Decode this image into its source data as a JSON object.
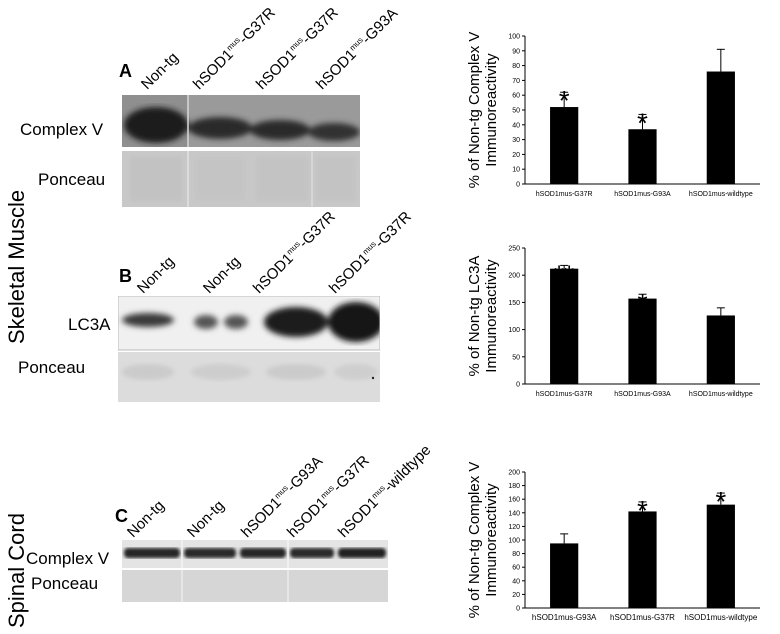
{
  "side_labels": {
    "skeletal_muscle": "Skeletal Muscle",
    "spinal_cord": "Spinal Cord"
  },
  "panel_a": {
    "letter": "A",
    "lanes": [
      {
        "base": "Non-tg",
        "sup": "",
        "suffix": ""
      },
      {
        "base": "hSOD1",
        "sup": "mus",
        "suffix": "-G37R"
      },
      {
        "base": "hSOD1",
        "sup": "mus",
        "suffix": "-G37R"
      },
      {
        "base": "hSOD1",
        "sup": "mus",
        "suffix": "-G93A"
      }
    ],
    "rows": [
      "Complex V",
      "Ponceau"
    ]
  },
  "panel_b": {
    "letter": "B",
    "lanes": [
      {
        "base": "Non-tg",
        "sup": "",
        "suffix": ""
      },
      {
        "base": "Non-tg",
        "sup": "",
        "suffix": ""
      },
      {
        "base": "hSOD1",
        "sup": "mus",
        "suffix": "-G37R"
      },
      {
        "base": "hSOD1",
        "sup": "mus",
        "suffix": "-G37R"
      }
    ],
    "rows": [
      "LC3A",
      "Ponceau"
    ]
  },
  "panel_c": {
    "letter": "C",
    "lanes": [
      {
        "base": "Non-tg",
        "sup": "",
        "suffix": ""
      },
      {
        "base": "Non-tg",
        "sup": "",
        "suffix": ""
      },
      {
        "base": "hSOD1",
        "sup": "mus",
        "suffix": "-G93A"
      },
      {
        "base": "hSOD1",
        "sup": "mus",
        "suffix": "-G37R"
      },
      {
        "base": "hSOD1",
        "sup": "mus",
        "suffix": "-wildtype"
      }
    ],
    "rows": [
      "Complex V",
      "Ponceau"
    ]
  },
  "chart_data": [
    {
      "type": "bar",
      "ylabel": "% of Non-tg Complex V Immunoreactivity",
      "categories": [
        "hSOD1mus-G37R",
        "hSOD1mus-G93A",
        "hSOD1mus-wildtype"
      ],
      "values": [
        52,
        37,
        76
      ],
      "errors": [
        10,
        10,
        15
      ],
      "significance": [
        "*",
        "*",
        ""
      ],
      "ylim": [
        0,
        100
      ],
      "yticks": [
        0,
        10,
        20,
        30,
        40,
        50,
        60,
        70,
        80,
        90,
        100
      ]
    },
    {
      "type": "bar",
      "ylabel": "% of Non-tg LC3A Immunoreactivity",
      "categories": [
        "hSOD1mus-G37R",
        "hSOD1mus-G93A",
        "hSOD1mus-wildtype"
      ],
      "values": [
        212,
        157,
        126
      ],
      "errors": [
        6,
        8,
        14
      ],
      "significance": [
        "**",
        "*",
        ""
      ],
      "ylim": [
        0,
        250
      ],
      "yticks": [
        0,
        50,
        100,
        150,
        200,
        250
      ]
    },
    {
      "type": "bar",
      "ylabel": "% of Non-tg Complex V Immunoreactivity",
      "categories": [
        "hSOD1mus-G93A",
        "hSOD1mus-G37R",
        "hSOD1mus-wildtype"
      ],
      "values": [
        95,
        142,
        152
      ],
      "errors": [
        14,
        14,
        17
      ],
      "significance": [
        "",
        "*",
        "*"
      ],
      "ylim": [
        0,
        200
      ],
      "yticks": [
        0,
        20,
        40,
        60,
        80,
        100,
        120,
        140,
        160,
        180,
        200
      ]
    }
  ]
}
